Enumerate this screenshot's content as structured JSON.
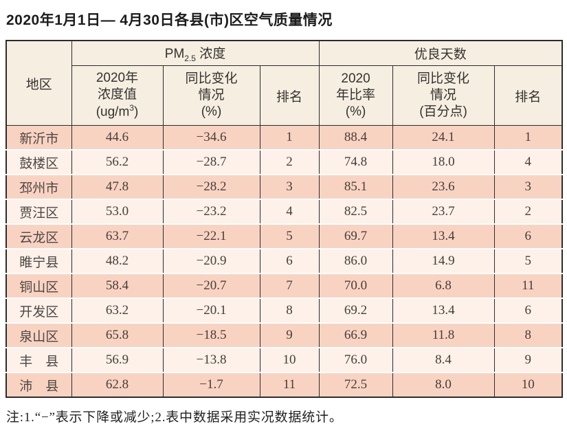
{
  "page": {
    "title": "2020年1月1日— 4月30日各县(市)区空气质量情况",
    "note": "注:1.“−”表示下降或减少;2.表中数据采用实况数据统计。"
  },
  "colors": {
    "salmon_row": "#f9d3c2",
    "light_row": "#fdf1ea",
    "header_bg": "#f5eee1",
    "border": "#2b2b2b"
  },
  "table": {
    "corner": "地区",
    "group_pm": {
      "pre": "PM",
      "sub": "2.5",
      "post": " 浓度"
    },
    "group_good": "优良天数",
    "sub_pm_value": {
      "l1": "2020年",
      "l2": "浓度值",
      "unit_pre": "(ug/m",
      "unit_sup": "3",
      "unit_post": ")"
    },
    "sub_pm_change": {
      "l1": "同比变化",
      "l2": "情况",
      "l3": "(%)"
    },
    "sub_pm_rank": "排名",
    "sub_good_ratio": {
      "l1": "2020",
      "l2": "年比率",
      "l3": "(%)"
    },
    "sub_good_change": {
      "l1": "同比变化",
      "l2": "情况",
      "l3": "(百分点)"
    },
    "sub_good_rank": "排名",
    "rows": [
      {
        "region": "新沂市",
        "pm_value": "44.6",
        "pm_change": "−34.6",
        "pm_rank": "1",
        "good_ratio": "88.4",
        "good_change": "24.1",
        "good_rank": "1"
      },
      {
        "region": "鼓楼区",
        "pm_value": "56.2",
        "pm_change": "−28.7",
        "pm_rank": "2",
        "good_ratio": "74.8",
        "good_change": "18.0",
        "good_rank": "4"
      },
      {
        "region": "邳州市",
        "pm_value": "47.8",
        "pm_change": "−28.2",
        "pm_rank": "3",
        "good_ratio": "85.1",
        "good_change": "23.6",
        "good_rank": "3"
      },
      {
        "region": "贾汪区",
        "pm_value": "53.0",
        "pm_change": "−23.2",
        "pm_rank": "4",
        "good_ratio": "82.5",
        "good_change": "23.7",
        "good_rank": "2"
      },
      {
        "region": "云龙区",
        "pm_value": "63.7",
        "pm_change": "−22.1",
        "pm_rank": "5",
        "good_ratio": "69.7",
        "good_change": "13.4",
        "good_rank": "6"
      },
      {
        "region": "睢宁县",
        "pm_value": "48.2",
        "pm_change": "−20.9",
        "pm_rank": "6",
        "good_ratio": "86.0",
        "good_change": "14.9",
        "good_rank": "5"
      },
      {
        "region": "铜山区",
        "pm_value": "58.4",
        "pm_change": "−20.7",
        "pm_rank": "7",
        "good_ratio": "70.0",
        "good_change": "6.8",
        "good_rank": "11"
      },
      {
        "region": "开发区",
        "pm_value": "63.2",
        "pm_change": "−20.1",
        "pm_rank": "8",
        "good_ratio": "69.2",
        "good_change": "13.4",
        "good_rank": "6"
      },
      {
        "region": "泉山区",
        "pm_value": "65.8",
        "pm_change": "−18.5",
        "pm_rank": "9",
        "good_ratio": "66.9",
        "good_change": "11.8",
        "good_rank": "8"
      },
      {
        "region": "丰　县",
        "pm_value": "56.9",
        "pm_change": "−13.8",
        "pm_rank": "10",
        "good_ratio": "76.0",
        "good_change": "8.4",
        "good_rank": "9"
      },
      {
        "region": "沛　县",
        "pm_value": "62.8",
        "pm_change": "−1.7",
        "pm_rank": "11",
        "good_ratio": "72.5",
        "good_change": "8.0",
        "good_rank": "10"
      }
    ]
  }
}
